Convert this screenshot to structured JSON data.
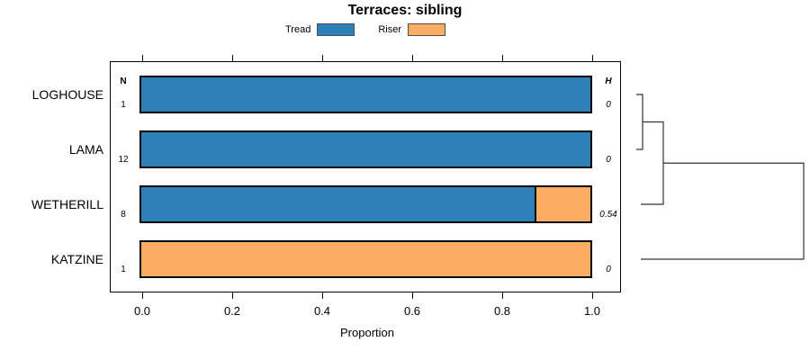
{
  "title": "Terraces: sibling",
  "legend": {
    "items": [
      {
        "label": "Tread",
        "color": "#2e81b8"
      },
      {
        "label": "Riser",
        "color": "#fbad64"
      }
    ]
  },
  "columns": {
    "n_header": "N",
    "h_header": "H"
  },
  "rows": [
    {
      "label": "LOGHOUSE",
      "n": "1",
      "h": "0",
      "tread": 1.0,
      "riser": 0.0
    },
    {
      "label": "LAMA",
      "n": "12",
      "h": "0",
      "tread": 1.0,
      "riser": 0.0
    },
    {
      "label": "WETHERILL",
      "n": "8",
      "h": "0.54",
      "tread": 0.875,
      "riser": 0.125
    },
    {
      "label": "KATZINE",
      "n": "1",
      "h": "0",
      "tread": 0.0,
      "riser": 1.0
    }
  ],
  "axis": {
    "label": "Proportion",
    "ticks": [
      "0.0",
      "0.2",
      "0.4",
      "0.6",
      "0.8",
      "1.0"
    ]
  },
  "chart_data": {
    "type": "bar",
    "orientation": "horizontal-stacked",
    "title": "Terraces: sibling",
    "categories": [
      "LOGHOUSE",
      "LAMA",
      "WETHERILL",
      "KATZINE"
    ],
    "series": [
      {
        "name": "Tread",
        "color": "#2e81b8",
        "values": [
          1.0,
          1.0,
          0.875,
          0.0
        ]
      },
      {
        "name": "Riser",
        "color": "#fbad64",
        "values": [
          0.0,
          0.0,
          0.125,
          1.0
        ]
      }
    ],
    "sample_sizes_N": [
      1,
      12,
      8,
      1
    ],
    "heterogeneity_H": [
      0,
      0,
      0.54,
      0
    ],
    "xlabel": "Proportion",
    "xlim": [
      0,
      1
    ],
    "xticks": [
      0.0,
      0.2,
      0.4,
      0.6,
      0.8,
      1.0
    ],
    "grid": false,
    "legend_position": "top-center",
    "dendrogram": {
      "position": "right",
      "leaf_order": [
        "LOGHOUSE",
        "LAMA",
        "WETHERILL",
        "KATZINE"
      ],
      "merges": [
        {
          "join": [
            "LOGHOUSE",
            "LAMA"
          ],
          "relative_height": 0.0
        },
        {
          "join": [
            [
              "LOGHOUSE",
              "LAMA"
            ],
            "WETHERILL"
          ],
          "relative_height": 0.13
        },
        {
          "join": [
            [
              "LOGHOUSE",
              "LAMA",
              "WETHERILL"
            ],
            "KATZINE"
          ],
          "relative_height": 1.0
        }
      ]
    }
  }
}
